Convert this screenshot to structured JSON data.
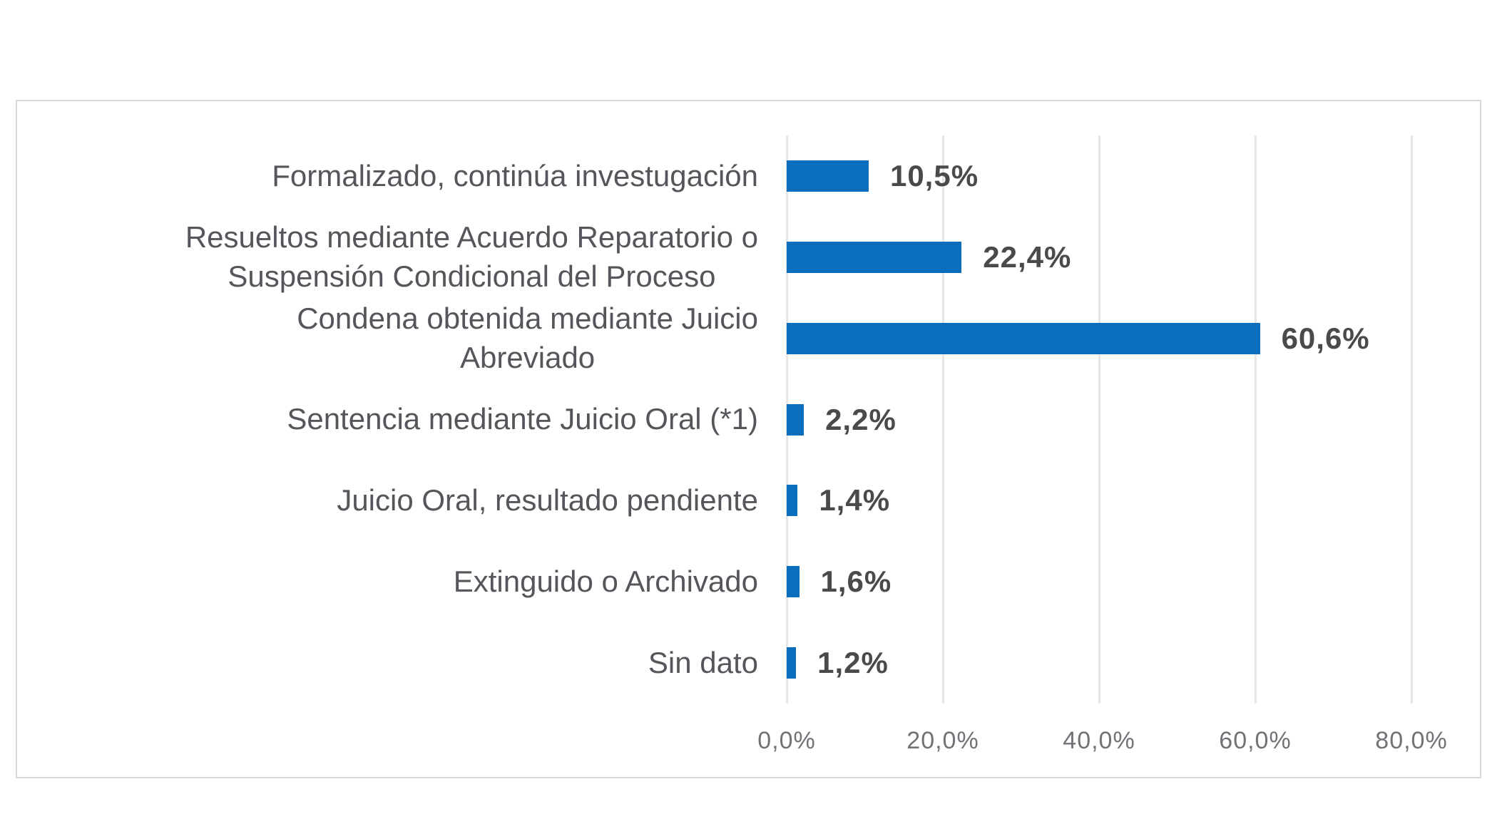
{
  "chart_data": {
    "type": "bar",
    "orientation": "horizontal",
    "title": "",
    "xlabel": "",
    "ylabel": "",
    "categories": [
      "Formalizado, continúa investugación",
      "Resueltos mediante Acuerdo Reparatorio o Suspensión Condicional del Proceso",
      "Condena obtenida mediante Juicio Abreviado",
      "Sentencia mediante Juicio Oral (*1)",
      "Juicio Oral, resultado pendiente",
      "Extinguido o Archivado",
      "Sin dato"
    ],
    "category_lines": [
      [
        "Formalizado, continúa investugación"
      ],
      [
        "Resueltos mediante Acuerdo Reparatorio o",
        "Suspensión Condicional del Proceso"
      ],
      [
        "Condena obtenida mediante Juicio",
        "Abreviado"
      ],
      [
        "Sentencia mediante Juicio Oral (*1)"
      ],
      [
        "Juicio Oral, resultado pendiente"
      ],
      [
        "Extinguido o Archivado"
      ],
      [
        "Sin dato"
      ]
    ],
    "values": [
      10.5,
      22.4,
      60.6,
      2.2,
      1.4,
      1.6,
      1.2
    ],
    "value_labels": [
      "10,5%",
      "22,4%",
      "60,6%",
      "2,2%",
      "1,4%",
      "1,6%",
      "1,2%"
    ],
    "x_tick_values": [
      0,
      20,
      40,
      60,
      80
    ],
    "x_tick_labels": [
      "0,0%",
      "20,0%",
      "40,0%",
      "60,0%",
      "80,0%"
    ],
    "xlim": [
      0,
      80
    ],
    "grid": "vertical-only",
    "legend": "none",
    "colors": {
      "bar": "#0a6ebd",
      "gridline": "#e6e6e6",
      "box_border": "#d9d9d9",
      "category_text": "#54565b",
      "value_text": "#4a4a4a",
      "tick_text": "#6f7276",
      "background": "#ffffff"
    }
  }
}
